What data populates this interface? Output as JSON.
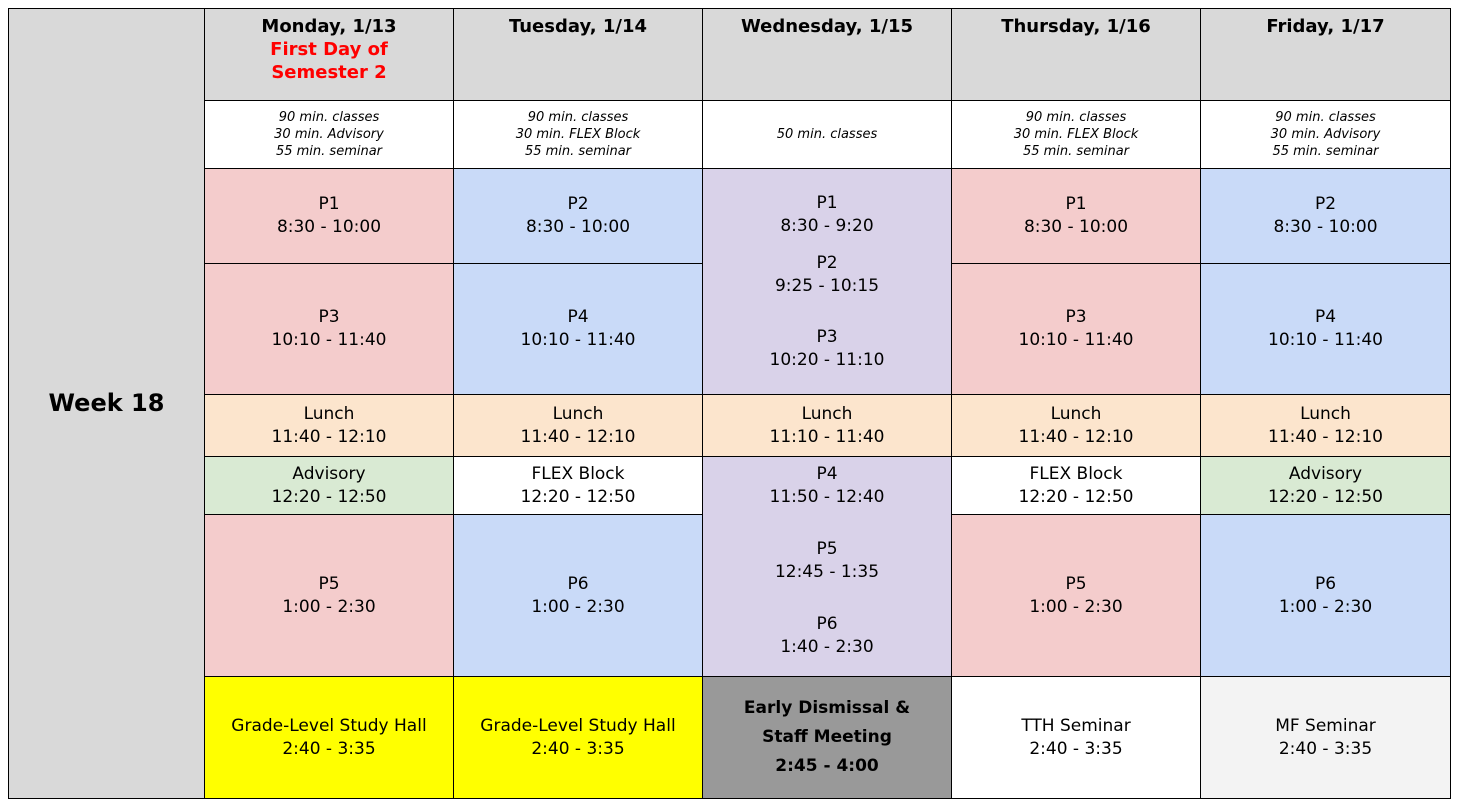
{
  "week_label": "Week 18",
  "days": [
    {
      "header": "Monday, 1/13",
      "sub": [
        "First Day of",
        "Semester 2"
      ],
      "notes": [
        "90 min. classes",
        "30 min. Advisory",
        "55 min. seminar"
      ]
    },
    {
      "header": "Tuesday, 1/14",
      "notes": [
        "90 min. classes",
        "30 min. FLEX Block",
        "55 min. seminar"
      ]
    },
    {
      "header": "Wednesday, 1/15",
      "notes": [
        "50 min. classes"
      ]
    },
    {
      "header": "Thursday, 1/16",
      "notes": [
        "90 min. classes",
        "30 min. FLEX Block",
        "55 min. seminar"
      ]
    },
    {
      "header": "Friday, 1/17",
      "notes": [
        "90 min. classes",
        "30 min. Advisory",
        "55 min. seminar"
      ]
    }
  ],
  "rows": {
    "block1": [
      {
        "label": "P1",
        "time": "8:30 - 10:00"
      },
      {
        "label": "P2",
        "time": "8:30 - 10:00"
      },
      {
        "label": "P1",
        "time": "8:30 - 9:20"
      },
      {
        "label": "P1",
        "time": "8:30 - 10:00"
      },
      {
        "label": "P2",
        "time": "8:30 - 10:00"
      }
    ],
    "block2": [
      {
        "label": "P3",
        "time": "10:10 - 11:40"
      },
      {
        "label": "P4",
        "time": "10:10 - 11:40"
      },
      null,
      {
        "label": "P3",
        "time": "10:10 - 11:40"
      },
      {
        "label": "P4",
        "time": "10:10 - 11:40"
      }
    ],
    "wed_morning": [
      {
        "label": "P1",
        "time": "8:30 - 9:20"
      },
      {
        "label": "P2",
        "time": "9:25 - 10:15"
      },
      {
        "label": "P3",
        "time": "10:20 - 11:10"
      }
    ],
    "lunch": [
      {
        "label": "Lunch",
        "time": "11:40 - 12:10"
      },
      {
        "label": "Lunch",
        "time": "11:40 - 12:10"
      },
      {
        "label": "Lunch",
        "time": "11:10 - 11:40"
      },
      {
        "label": "Lunch",
        "time": "11:40 - 12:10"
      },
      {
        "label": "Lunch",
        "time": "11:40 - 12:10"
      }
    ],
    "midday": [
      {
        "label": "Advisory",
        "time": "12:20 - 12:50"
      },
      {
        "label": "FLEX Block",
        "time": "12:20 - 12:50"
      },
      null,
      {
        "label": "FLEX Block",
        "time": "12:20 - 12:50"
      },
      {
        "label": "Advisory",
        "time": "12:20 - 12:50"
      }
    ],
    "wed_afternoon": [
      {
        "label": "P4",
        "time": "11:50 - 12:40"
      },
      {
        "label": "P5",
        "time": "12:45 - 1:35"
      },
      {
        "label": "P6",
        "time": "1:40 - 2:30"
      }
    ],
    "block3": [
      {
        "label": "P5",
        "time": "1:00 - 2:30"
      },
      {
        "label": "P6",
        "time": "1:00 - 2:30"
      },
      null,
      {
        "label": "P5",
        "time": "1:00 - 2:30"
      },
      {
        "label": "P6",
        "time": "1:00 - 2:30"
      }
    ],
    "seminar": [
      {
        "label": "Grade-Level Study Hall",
        "time": "2:40 - 3:35"
      },
      {
        "label": "Grade-Level Study Hall",
        "time": "2:40 - 3:35"
      },
      {
        "label_lines": [
          "Early Dismissal &",
          "Staff Meeting"
        ],
        "time": "2:45 - 4:00"
      },
      {
        "label": "TTH Seminar",
        "time": "2:40 - 3:35"
      },
      {
        "label": "MF Seminar",
        "time": "2:40 - 3:35"
      }
    ]
  },
  "colors": {
    "header_gray": "#d9d9d9",
    "period_pink": "#f4cccc",
    "period_blue": "#c9daf8",
    "wednesday_purple": "#d9d2e9",
    "lunch_peach": "#fce5cd",
    "advisory_green": "#d9ead3",
    "study_hall_yellow": "#ffff00",
    "dismissal_gray": "#999999",
    "seminar_light": "#f3f3f3",
    "highlight_red": "#ff0000"
  }
}
